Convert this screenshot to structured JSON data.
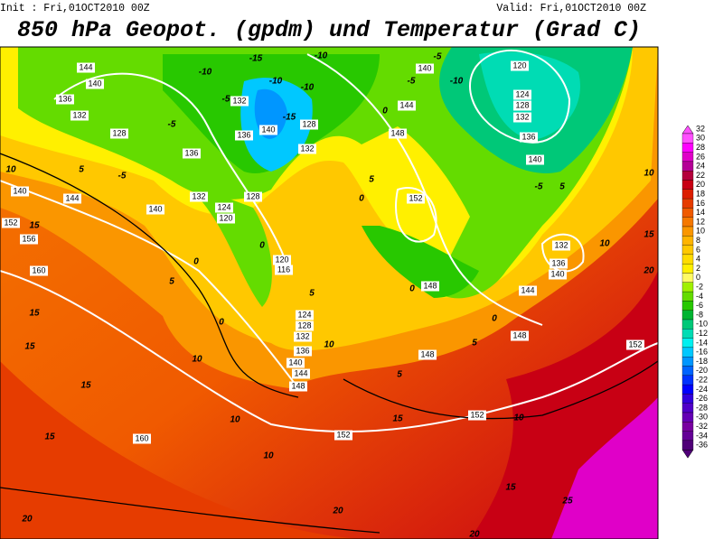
{
  "header": {
    "init": "Init : Fri,01OCT2010 00Z",
    "valid": "Valid: Fri,01OCT2010 00Z",
    "title": "850 hPa Geopot. (gpdm) und Temperatur (Grad C)"
  },
  "colorbar": {
    "labels": [
      "32",
      "30",
      "28",
      "26",
      "24",
      "22",
      "20",
      "18",
      "16",
      "14",
      "12",
      "10",
      "8",
      "6",
      "4",
      "2",
      "0",
      "-2",
      "-4",
      "-6",
      "-8",
      "-10",
      "-12",
      "-14",
      "-16",
      "-18",
      "-20",
      "-22",
      "-24",
      "-26",
      "-28",
      "-30",
      "-32",
      "-34",
      "-36"
    ],
    "colors": [
      "#ff50ff",
      "#ff00ff",
      "#e000c8",
      "#b40096",
      "#b4003c",
      "#c80014",
      "#dc1e00",
      "#e63c00",
      "#f05a00",
      "#f57800",
      "#fa9600",
      "#ffb400",
      "#ffc800",
      "#ffdc00",
      "#fff000",
      "#fffa64",
      "#a0f000",
      "#64dc00",
      "#28c800",
      "#00b432",
      "#00c878",
      "#00dcb4",
      "#00f0f0",
      "#00c8ff",
      "#0096ff",
      "#0064ff",
      "#0032ff",
      "#0000ff",
      "#3200dc",
      "#5000c8",
      "#6400b4",
      "#7800a0",
      "#640096",
      "#500078"
    ]
  },
  "map": {
    "geopotential_labels": [
      "144",
      "140",
      "136",
      "132",
      "128",
      "136",
      "132",
      "128",
      "124",
      "120",
      "140",
      "144",
      "140",
      "152",
      "156",
      "160",
      "120",
      "116",
      "124",
      "128",
      "132",
      "136",
      "140",
      "144",
      "148",
      "148",
      "148",
      "152",
      "152",
      "148",
      "144",
      "140",
      "136",
      "132",
      "152",
      "148",
      "144",
      "140",
      "120",
      "124",
      "128",
      "132",
      "136",
      "140",
      "160",
      "152",
      "132",
      "136",
      "140",
      "132",
      "128"
    ],
    "temperature_labels": [
      "-15",
      "-10",
      "-10",
      "-10",
      "-10",
      "-5",
      "10",
      "5",
      "15",
      "15",
      "15",
      "15",
      "15",
      "10",
      "10",
      "10",
      "5",
      "0",
      "0",
      "0",
      "5",
      "10",
      "5",
      "15",
      "10",
      "15",
      "20",
      "20",
      "20",
      "25",
      "20",
      "15",
      "10",
      "10",
      "5",
      "-5",
      "-5",
      "-10",
      "-5",
      "0",
      "5",
      "0",
      "0",
      "0",
      "5",
      "-5",
      "-5",
      "-15"
    ]
  }
}
